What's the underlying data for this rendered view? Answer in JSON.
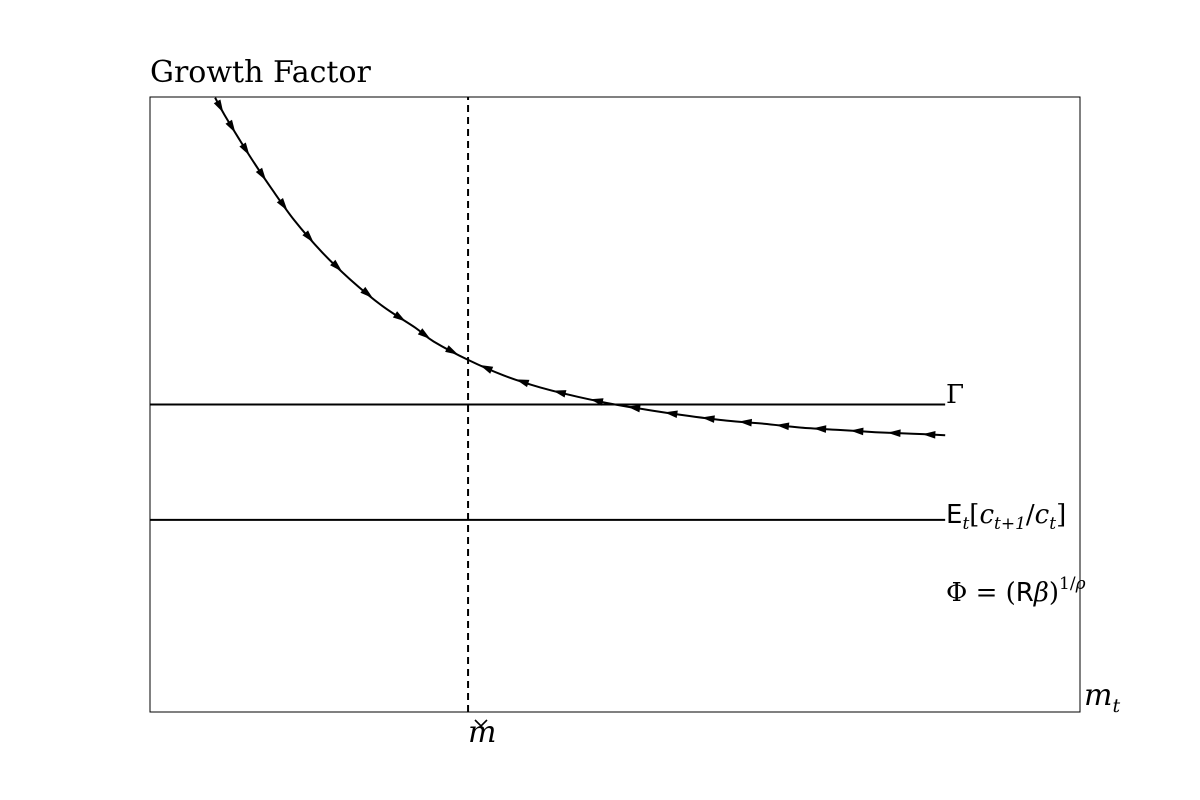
{
  "chart_data": {
    "type": "line",
    "title": "Growth Factor",
    "xlabel": "m_t",
    "ylabel": "",
    "xlim": [
      0,
      10
    ],
    "ylim": [
      0.6,
      1.4
    ],
    "grid": false,
    "ticks": {
      "x": [],
      "y": []
    },
    "series": [
      {
        "name": "E_t[c_{t+1}/c_t]",
        "style": "solid-with-arrows",
        "arrow_direction": "toward m-check",
        "x": [
          0.7,
          0.8,
          0.95,
          1.1,
          1.3,
          1.55,
          1.85,
          2.15,
          2.5,
          2.85,
          3.05,
          3.42,
          3.8,
          4.2,
          4.6,
          5.0,
          5.4,
          5.8,
          6.2,
          6.6,
          7.0,
          7.4,
          7.8,
          8.2,
          8.55
        ],
        "y": [
          1.399,
          1.377,
          1.347,
          1.318,
          1.282,
          1.24,
          1.198,
          1.163,
          1.128,
          1.1,
          1.082,
          1.058,
          1.038,
          1.022,
          1.01,
          1.0,
          0.992,
          0.985,
          0.979,
          0.975,
          0.97,
          0.967,
          0.964,
          0.962,
          0.96
        ]
      },
      {
        "name": "Γ",
        "style": "solid",
        "x": [
          0,
          8.55
        ],
        "y": [
          1.0,
          1.0
        ]
      },
      {
        "name": "Φ = (Rβ)^{1/ρ}",
        "style": "solid",
        "x": [
          0,
          8.55
        ],
        "y": [
          0.85,
          0.85
        ]
      },
      {
        "name": "m̌",
        "style": "dashed",
        "orientation": "vertical",
        "x": [
          3.42,
          3.42
        ],
        "y": [
          0.6,
          1.4
        ]
      }
    ],
    "annotations": {
      "gamma": "Γ",
      "expectation": "E_t[c_{t+1}/c_t]",
      "phi": "Φ = (Rβ)^{1/ρ}",
      "mcheck": "m̌"
    }
  }
}
